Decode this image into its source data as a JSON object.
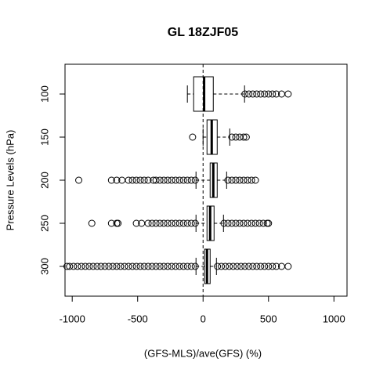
{
  "chart_data": {
    "type": "boxplot",
    "title": "GL 18ZJF05",
    "xlabel": "(GFS-MLS)/ave(GFS) (%)",
    "ylabel": "Pressure Levels (hPa)",
    "categories": [
      "100",
      "150",
      "200",
      "250",
      "300"
    ],
    "boxes": [
      {
        "whislo": -120,
        "q1": -72,
        "med": 8,
        "q3": 78,
        "whishi": 317,
        "fliers": [
          320,
          350,
          380,
          410,
          440,
          470,
          500,
          530,
          560,
          600,
          650
        ]
      },
      {
        "whislo": 0,
        "q1": 30,
        "med": 66,
        "q3": 108,
        "whishi": 204,
        "fliers": [
          -80,
          220,
          250,
          280,
          310,
          330
        ]
      },
      {
        "whislo": -54,
        "q1": 54,
        "med": 78,
        "q3": 108,
        "whishi": 180,
        "fliers": [
          -60,
          -90,
          -120,
          -150,
          -180,
          -210,
          -240,
          -270,
          -300,
          -330,
          -360,
          -380,
          -420,
          -450,
          -480,
          -510,
          -540,
          -570,
          -620,
          -660,
          -700,
          -950,
          190,
          220,
          250,
          280,
          310,
          340,
          370,
          400
        ]
      },
      {
        "whislo": -54,
        "q1": 30,
        "med": 54,
        "q3": 84,
        "whishi": 156,
        "fliers": [
          -60,
          -90,
          -120,
          -150,
          -180,
          -210,
          -240,
          -270,
          -300,
          -330,
          -360,
          -390,
          -420,
          -470,
          -510,
          -650,
          -660,
          -700,
          -850,
          160,
          190,
          220,
          250,
          280,
          310,
          340,
          370,
          400,
          430,
          460,
          490,
          500
        ]
      },
      {
        "whislo": -54,
        "q1": 12,
        "med": 30,
        "q3": 54,
        "whishi": 102,
        "fliers": [
          -60,
          -90,
          -120,
          -150,
          -180,
          -210,
          -240,
          -270,
          -300,
          -330,
          -360,
          -390,
          -420,
          -450,
          -480,
          -510,
          -540,
          -570,
          -600,
          -630,
          -660,
          -690,
          -720,
          -750,
          -780,
          -810,
          -840,
          -870,
          -900,
          -930,
          -960,
          -990,
          -1020,
          -1040,
          110,
          140,
          170,
          200,
          230,
          260,
          290,
          320,
          350,
          380,
          410,
          440,
          470,
          500,
          530,
          560,
          600,
          650
        ]
      }
    ],
    "vline": 0,
    "xlim": [
      -1055,
      1100
    ],
    "xticks": [
      -1000,
      -500,
      0,
      500,
      1000
    ]
  }
}
